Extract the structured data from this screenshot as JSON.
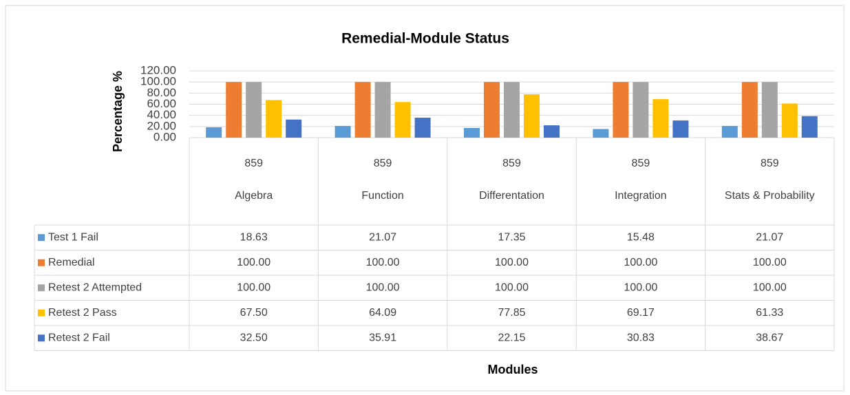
{
  "chart_data": {
    "type": "bar",
    "title": "Remedial-Module Status",
    "y_label": "Percentage %",
    "x_label": "Modules",
    "categories": [
      "Algebra",
      "Function",
      "Differentation",
      "Integration",
      "Stats & Probability"
    ],
    "category_group_labels": [
      "859",
      "859",
      "859",
      "859",
      "859"
    ],
    "ylim": [
      0,
      120
    ],
    "yticks": [
      {
        "value": 0,
        "label": "0.00"
      },
      {
        "value": 20,
        "label": "20.00"
      },
      {
        "value": 40,
        "label": "40.00"
      },
      {
        "value": 60,
        "label": "60.00"
      },
      {
        "value": 80,
        "label": "80.00"
      },
      {
        "value": 100,
        "label": "100.00"
      },
      {
        "value": 120,
        "label": "120.00"
      }
    ],
    "grid": true,
    "series": [
      {
        "name": "Test 1 Fail",
        "color": "#5b9bd5",
        "values": [
          18.63,
          21.07,
          17.35,
          15.48,
          21.07
        ],
        "value_labels": [
          "18.63",
          "21.07",
          "17.35",
          "15.48",
          "21.07"
        ]
      },
      {
        "name": "Remedial",
        "color": "#ed7d31",
        "values": [
          100,
          100,
          100,
          100,
          100
        ],
        "value_labels": [
          "100.00",
          "100.00",
          "100.00",
          "100.00",
          "100.00"
        ]
      },
      {
        "name": "Retest 2 Attempted",
        "color": "#a5a5a5",
        "values": [
          100,
          100,
          100,
          100,
          100
        ],
        "value_labels": [
          "100.00",
          "100.00",
          "100.00",
          "100.00",
          "100.00"
        ]
      },
      {
        "name": "Retest 2 Pass",
        "color": "#ffc000",
        "values": [
          67.5,
          64.09,
          77.85,
          69.17,
          61.33
        ],
        "value_labels": [
          "67.50",
          "64.09",
          "77.85",
          "69.17",
          "61.33"
        ]
      },
      {
        "name": "Retest 2 Fail",
        "color": "#4472c4",
        "values": [
          32.5,
          35.91,
          22.15,
          30.83,
          38.67
        ],
        "value_labels": [
          "32.50",
          "35.91",
          "22.15",
          "30.83",
          "38.67"
        ]
      }
    ]
  }
}
